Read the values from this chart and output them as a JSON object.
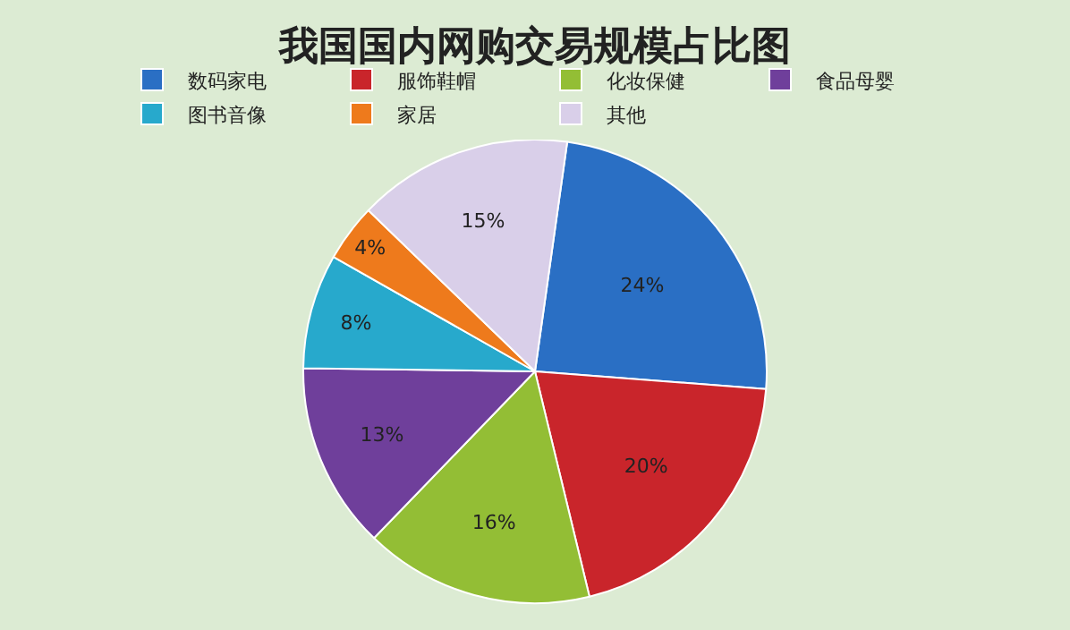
{
  "chart_data": {
    "type": "pie",
    "title": "我国国内网购交易规模占比图",
    "categories": [
      "数码家电",
      "服饰鞋帽",
      "化妆保健",
      "食品母婴",
      "图书音像",
      "家居",
      "其他"
    ],
    "values": [
      24,
      20,
      16,
      13,
      8,
      4,
      15
    ],
    "colors": [
      "#2a6fc4",
      "#c9252b",
      "#93be35",
      "#6f3f9b",
      "#27a9cc",
      "#ee7a1c",
      "#d9cfe9"
    ],
    "value_labels": [
      "24%",
      "20%",
      "16%",
      "13%",
      "8%",
      "4%",
      "15%"
    ],
    "legend": "top"
  }
}
